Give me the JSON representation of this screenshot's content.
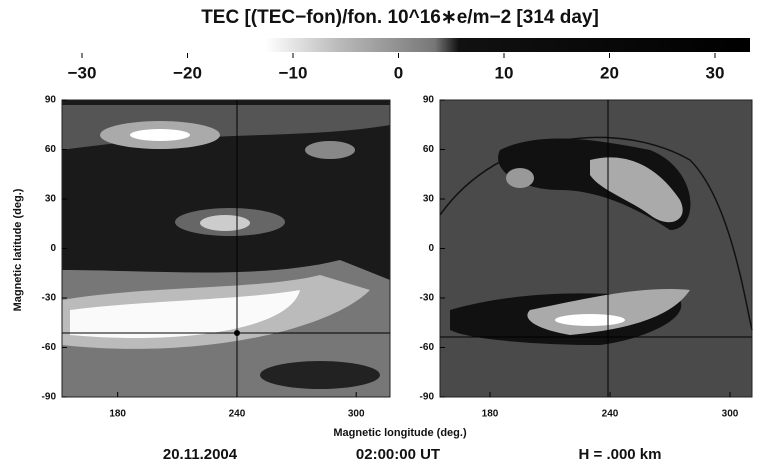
{
  "chart_data": {
    "type": "contour",
    "title": "TEC [(TEC−fon)/fon.  10^16∗e/m−2  [314 day]",
    "colorbar": {
      "lim": [
        -30,
        30
      ],
      "ticks": [
        {
          "value": -30,
          "label": "−30"
        },
        {
          "value": -20,
          "label": "−20"
        },
        {
          "value": -10,
          "label": "−10"
        },
        0,
        10,
        20,
        30
      ]
    },
    "x_label": "Magnetic longitude (deg.)",
    "y_label": "Magnetic latitude (deg.)",
    "panels": [
      {
        "xlim": [
          152,
          317
        ],
        "ylim": [
          -90,
          90
        ],
        "xticks": [
          180,
          240,
          300
        ],
        "yticks": [
          90,
          60,
          30,
          0,
          {
            "value": -30,
            "label": "-30"
          },
          {
            "value": -60,
            "label": "-60"
          },
          {
            "value": -90,
            "label": "-90"
          }
        ]
      },
      {
        "xlim": [
          155,
          311
        ],
        "ylim": [
          -90,
          90
        ],
        "xticks": [
          180,
          240,
          300
        ],
        "yticks": [
          90,
          60,
          30,
          0,
          {
            "value": -30,
            "label": "-30"
          },
          {
            "value": -60,
            "label": "-60"
          },
          {
            "value": -90,
            "label": "-90"
          }
        ]
      }
    ],
    "footer": [
      "20.11.2004",
      "02:00:00 UT",
      "H = .000 km"
    ]
  }
}
